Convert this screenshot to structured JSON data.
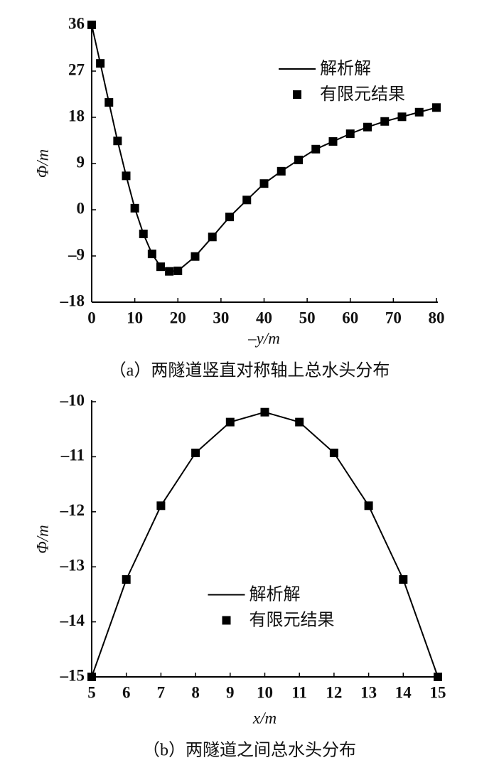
{
  "chart_data": [
    {
      "type": "line",
      "caption": "（a）两隧道竖直对称轴上总水头分布",
      "xlabel": "–y/m",
      "ylabel": "Φ/m",
      "x": [
        0,
        2,
        4,
        6,
        8,
        10,
        12,
        14,
        16,
        18,
        20,
        24,
        28,
        32,
        36,
        40,
        44,
        48,
        52,
        56,
        60,
        64,
        68,
        72,
        76,
        80
      ],
      "series": [
        {
          "name": "解析解",
          "kind": "line",
          "color": "#000000",
          "values": [
            36,
            28.5,
            20.9,
            13.4,
            6.6,
            0.3,
            -4.7,
            -8.6,
            -11.1,
            -12.0,
            -11.9,
            -9.1,
            -5.3,
            -1.4,
            1.9,
            5.1,
            7.5,
            9.7,
            11.8,
            13.3,
            14.8,
            16.1,
            17.2,
            18.1,
            19.0,
            19.9
          ]
        },
        {
          "name": "有限元结果",
          "kind": "marker",
          "color": "#000000",
          "values": [
            36,
            28.5,
            20.9,
            13.4,
            6.6,
            0.3,
            -4.7,
            -8.6,
            -11.1,
            -12.0,
            -11.9,
            -9.1,
            -5.3,
            -1.4,
            1.9,
            5.1,
            7.5,
            9.7,
            11.8,
            13.3,
            14.8,
            16.1,
            17.2,
            18.1,
            19.0,
            19.9
          ]
        }
      ],
      "xlim": [
        0,
        80
      ],
      "xticks": [
        0,
        10,
        20,
        30,
        40,
        50,
        60,
        70,
        80
      ],
      "ylim": [
        -18,
        36
      ],
      "yticks": [
        {
          "value": -18,
          "label": "–18"
        },
        {
          "value": -9,
          "label": "–9"
        },
        0,
        9,
        18,
        27,
        36
      ],
      "grid": false,
      "legend": "upper right"
    },
    {
      "type": "line",
      "caption": "（b）两隧道之间总水头分布",
      "xlabel": "x/m",
      "ylabel": "Φ/m",
      "x": [
        5,
        6,
        7,
        8,
        9,
        10,
        11,
        12,
        13,
        14,
        15
      ],
      "series": [
        {
          "name": "解析解",
          "kind": "line",
          "color": "#000000",
          "values": [
            -15,
            -13.23,
            -11.89,
            -10.93,
            -10.37,
            -10.19,
            -10.37,
            -10.93,
            -11.89,
            -13.23,
            -15
          ]
        },
        {
          "name": "有限元结果",
          "kind": "marker",
          "color": "#000000",
          "values": [
            -15,
            -13.23,
            -11.89,
            -10.93,
            -10.37,
            -10.19,
            -10.37,
            -10.93,
            -11.89,
            -13.23,
            -15
          ]
        }
      ],
      "xlim": [
        5,
        15
      ],
      "xticks": [
        5,
        6,
        7,
        8,
        9,
        10,
        11,
        12,
        13,
        14,
        15
      ],
      "ylim": [
        -15,
        -10
      ],
      "yticks": [
        {
          "value": -15,
          "label": "–15"
        },
        {
          "value": -14,
          "label": "–14"
        },
        {
          "value": -13,
          "label": "–13"
        },
        {
          "value": -12,
          "label": "–12"
        },
        {
          "value": -11,
          "label": "–11"
        },
        {
          "value": -10,
          "label": "–10"
        }
      ],
      "grid": false,
      "legend": "center"
    }
  ]
}
